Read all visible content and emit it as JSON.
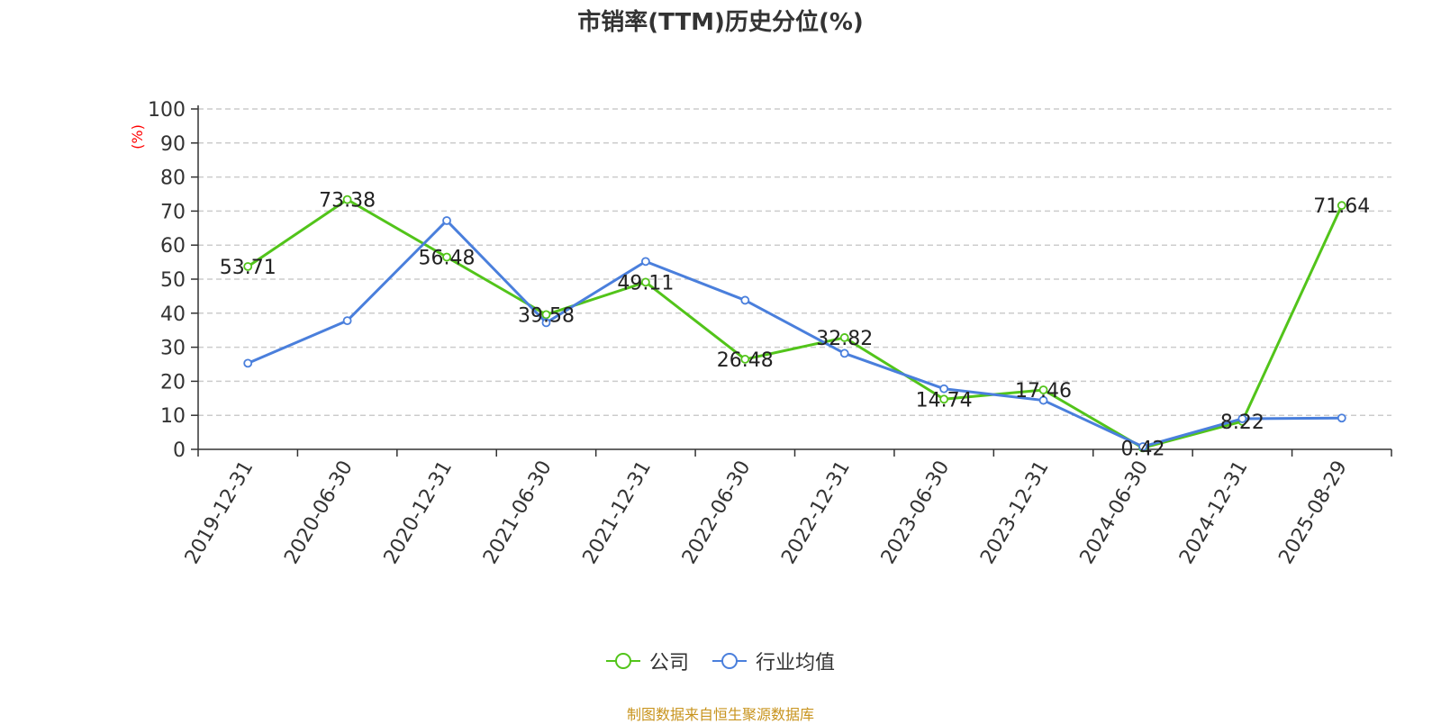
{
  "chart_data": {
    "type": "line",
    "title": "市销率(TTM)历史分位(%)",
    "ylabel": "(%)",
    "xlabel": "",
    "ylim": [
      0,
      100
    ],
    "yticks": [
      0,
      10,
      20,
      30,
      40,
      50,
      60,
      70,
      80,
      90,
      100
    ],
    "grid": true,
    "legend_position": "bottom-center",
    "categories": [
      "2019-12-31",
      "2020-06-30",
      "2020-12-31",
      "2021-06-30",
      "2021-12-31",
      "2022-06-30",
      "2022-12-31",
      "2023-06-30",
      "2023-12-31",
      "2024-06-30",
      "2024-12-31",
      "2025-08-29"
    ],
    "series": [
      {
        "name": "公司",
        "color": "#52c41a",
        "show_labels": true,
        "values": [
          53.71,
          73.38,
          56.48,
          39.58,
          49.11,
          26.48,
          32.82,
          14.74,
          17.46,
          0.42,
          8.22,
          71.64
        ]
      },
      {
        "name": "行业均值",
        "color": "#4a7fdc",
        "show_labels": false,
        "values": [
          25.3,
          37.8,
          67.2,
          37.2,
          55.2,
          43.8,
          28.2,
          17.8,
          14.4,
          0.8,
          9.0,
          9.2
        ]
      }
    ],
    "source": "制图数据来自恒生聚源数据库"
  },
  "colors": {
    "axis": "#333333",
    "grid": "#cccccc",
    "ylabel": "#ff0000",
    "source": "#c8941e"
  }
}
